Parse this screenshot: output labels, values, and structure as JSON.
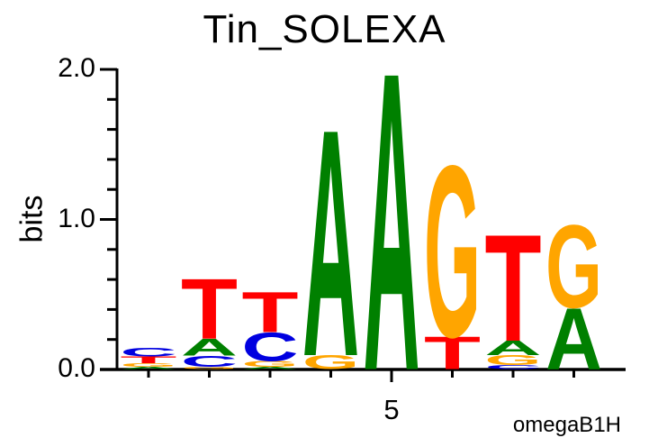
{
  "chart_data": {
    "type": "sequence_logo",
    "title": "Tin_SOLEXA",
    "ylabel": "bits",
    "ylim": [
      0.0,
      2.0
    ],
    "ytick_labels": [
      "0.0",
      "1.0",
      "2.0"
    ],
    "minor_tick_step": 0.2,
    "xticks": {
      "labeled_position": 5,
      "label": "5"
    },
    "watermark": "omegaB1H",
    "colors": {
      "A": "#008000",
      "C": "#0000e0",
      "G": "#ffa500",
      "T": "#ff0000"
    },
    "positions": [
      {
        "index": 1,
        "stack": [
          {
            "letter": "C",
            "bits": 0.057
          },
          {
            "letter": "T",
            "bits": 0.045
          },
          {
            "letter": "G",
            "bits": 0.024
          },
          {
            "letter": "A",
            "bits": 0.015
          }
        ]
      },
      {
        "index": 2,
        "stack": [
          {
            "letter": "T",
            "bits": 0.402
          },
          {
            "letter": "A",
            "bits": 0.114
          },
          {
            "letter": "C",
            "bits": 0.075
          },
          {
            "letter": "G",
            "bits": 0.015
          }
        ]
      },
      {
        "index": 3,
        "stack": [
          {
            "letter": "T",
            "bits": 0.27
          },
          {
            "letter": "C",
            "bits": 0.192
          },
          {
            "letter": "G",
            "bits": 0.039
          },
          {
            "letter": "A",
            "bits": 0.015
          }
        ]
      },
      {
        "index": 4,
        "stack": [
          {
            "letter": "A",
            "bits": 1.513
          },
          {
            "letter": "G",
            "bits": 0.093
          }
        ]
      },
      {
        "index": 5,
        "stack": [
          {
            "letter": "A",
            "bits": 1.99
          }
        ]
      },
      {
        "index": 6,
        "stack": [
          {
            "letter": "G",
            "bits": 1.144
          },
          {
            "letter": "T",
            "bits": 0.219
          }
        ]
      },
      {
        "index": 7,
        "stack": [
          {
            "letter": "T",
            "bits": 0.712
          },
          {
            "letter": "A",
            "bits": 0.096
          },
          {
            "letter": "G",
            "bits": 0.066
          },
          {
            "letter": "C",
            "bits": 0.027
          }
        ]
      },
      {
        "index": 8,
        "stack": [
          {
            "letter": "G",
            "bits": 0.553
          },
          {
            "letter": "A",
            "bits": 0.411
          }
        ]
      }
    ]
  }
}
